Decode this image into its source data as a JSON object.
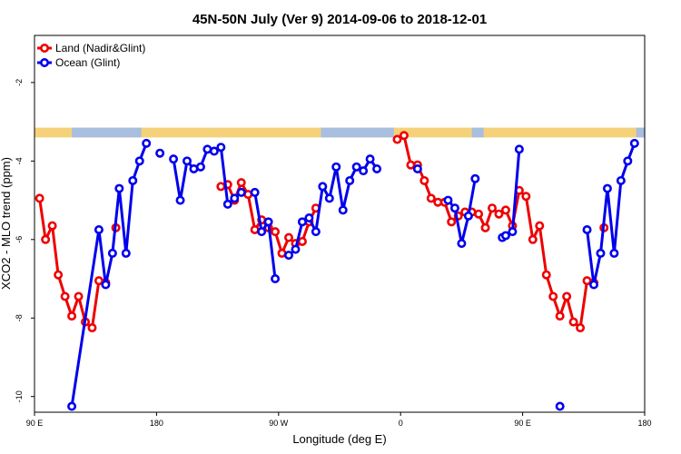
{
  "chart_data": {
    "type": "line",
    "title": "45N-50N July (Ver 9)   2014-09-06 to 2018-12-01",
    "xlabel": "Longitude (deg E)",
    "ylabel": "XCO2 - MLO trend (ppm)",
    "xlim": [
      90,
      450
    ],
    "ylim": [
      -10.4,
      -0.8
    ],
    "x_ticks": [
      {
        "value": 90,
        "label": "90 E"
      },
      {
        "value": 162,
        "label": "180"
      },
      {
        "value": 234,
        "label": "90 W"
      },
      {
        "value": 306,
        "label": "0"
      },
      {
        "value": 378,
        "label": "90 E"
      },
      {
        "value": 450,
        "label": "180"
      }
    ],
    "y_ticks": [
      {
        "value": -2,
        "label": "-2"
      },
      {
        "value": -4,
        "label": "-4"
      },
      {
        "value": -6,
        "label": "-6"
      },
      {
        "value": -8,
        "label": "-8"
      },
      {
        "value": -10,
        "label": "-10"
      }
    ],
    "legend_position": "top-left",
    "grid": false,
    "land_band": {
      "y_top": -3.15,
      "y_bottom": -3.4,
      "land_color": "#f5d27a",
      "ocean_color": "#a8bedf"
    },
    "series": [
      {
        "name": "Land (Nadir&Glint)",
        "color": "#ee0000",
        "segments": [
          [
            [
              93,
              -4.95
            ],
            [
              96.5,
              -6.0
            ],
            [
              100.5,
              -5.65
            ],
            [
              104,
              -6.9
            ],
            [
              108,
              -7.45
            ],
            [
              112,
              -7.95
            ],
            [
              116,
              -7.45
            ],
            [
              120,
              -8.1
            ],
            [
              124,
              -8.25
            ],
            [
              128,
              -7.05
            ],
            [
              132,
              -7.1
            ]
          ],
          [
            [
              138,
              -5.7
            ]
          ],
          [
            [
              200,
              -4.65
            ],
            [
              204,
              -4.6
            ],
            [
              208,
              -5.0
            ],
            [
              212,
              -4.55
            ],
            [
              216,
              -4.85
            ],
            [
              220,
              -5.75
            ],
            [
              224,
              -5.5
            ],
            [
              228,
              -5.7
            ],
            [
              232,
              -5.8
            ],
            [
              236,
              -6.35
            ],
            [
              240,
              -5.95
            ],
            [
              244,
              -6.1
            ],
            [
              248,
              -6.05
            ],
            [
              252,
              -5.55
            ],
            [
              256,
              -5.2
            ]
          ],
          [
            [
              304,
              -3.45
            ],
            [
              308,
              -3.35
            ],
            [
              312,
              -4.1
            ],
            [
              316,
              -4.1
            ],
            [
              320,
              -4.5
            ],
            [
              324,
              -4.95
            ],
            [
              328,
              -5.05
            ],
            [
              332,
              -5.05
            ],
            [
              336,
              -5.55
            ],
            [
              340,
              -5.4
            ],
            [
              344,
              -5.3
            ],
            [
              348,
              -5.3
            ],
            [
              352,
              -5.35
            ],
            [
              356,
              -5.7
            ],
            [
              360,
              -5.2
            ],
            [
              364,
              -5.35
            ],
            [
              368,
              -5.25
            ],
            [
              372,
              -5.65
            ],
            [
              376,
              -4.75
            ],
            [
              380,
              -4.9
            ],
            [
              384,
              -6.0
            ],
            [
              388,
              -5.65
            ],
            [
              392,
              -6.9
            ],
            [
              396,
              -7.45
            ],
            [
              400,
              -7.95
            ],
            [
              404,
              -7.45
            ],
            [
              408,
              -8.1
            ],
            [
              412,
              -8.25
            ],
            [
              416,
              -7.05
            ],
            [
              420,
              -7.1
            ]
          ],
          [
            [
              426,
              -5.7
            ]
          ]
        ]
      },
      {
        "name": "Ocean (Glint)",
        "color": "#0000ee",
        "segments": [
          [
            [
              112,
              -10.25
            ],
            [
              128,
              -5.75
            ],
            [
              132,
              -7.15
            ],
            [
              136,
              -6.35
            ],
            [
              140,
              -4.7
            ],
            [
              144,
              -6.35
            ],
            [
              148,
              -4.5
            ],
            [
              152,
              -4.0
            ],
            [
              156,
              -3.55
            ]
          ],
          [
            [
              164,
              -3.8
            ]
          ],
          [
            [
              172,
              -3.95
            ],
            [
              176,
              -5.0
            ],
            [
              180,
              -4.0
            ],
            [
              184,
              -4.2
            ],
            [
              188,
              -4.15
            ],
            [
              192,
              -3.7
            ],
            [
              196,
              -3.75
            ],
            [
              200,
              -3.65
            ],
            [
              204,
              -5.1
            ],
            [
              208,
              -4.95
            ],
            [
              212,
              -4.8
            ]
          ],
          [
            [
              220,
              -4.8
            ],
            [
              224,
              -5.8
            ],
            [
              228,
              -5.55
            ],
            [
              232,
              -7.0
            ]
          ],
          [
            [
              240,
              -6.4
            ],
            [
              244,
              -6.25
            ],
            [
              248,
              -5.55
            ],
            [
              252,
              -5.45
            ],
            [
              256,
              -5.8
            ],
            [
              260,
              -4.65
            ],
            [
              264,
              -4.95
            ],
            [
              268,
              -4.15
            ],
            [
              272,
              -5.25
            ],
            [
              276,
              -4.5
            ],
            [
              280,
              -4.15
            ],
            [
              284,
              -4.25
            ],
            [
              288,
              -3.95
            ],
            [
              292,
              -4.2
            ]
          ],
          [
            [
              316,
              -4.2
            ]
          ],
          [
            [
              334,
              -5.0
            ],
            [
              338,
              -5.2
            ],
            [
              342,
              -6.1
            ],
            [
              346,
              -5.4
            ],
            [
              350,
              -4.45
            ]
          ],
          [
            [
              366,
              -5.95
            ],
            [
              368,
              -5.9
            ],
            [
              372,
              -5.8
            ],
            [
              376,
              -3.7
            ]
          ],
          [
            [
              400,
              -10.25
            ]
          ],
          [
            [
              416,
              -5.75
            ],
            [
              420,
              -7.15
            ],
            [
              424,
              -6.35
            ],
            [
              428,
              -4.7
            ],
            [
              432,
              -6.35
            ],
            [
              436,
              -4.5
            ],
            [
              440,
              -4.0
            ],
            [
              444,
              -3.55
            ]
          ]
        ]
      }
    ]
  }
}
